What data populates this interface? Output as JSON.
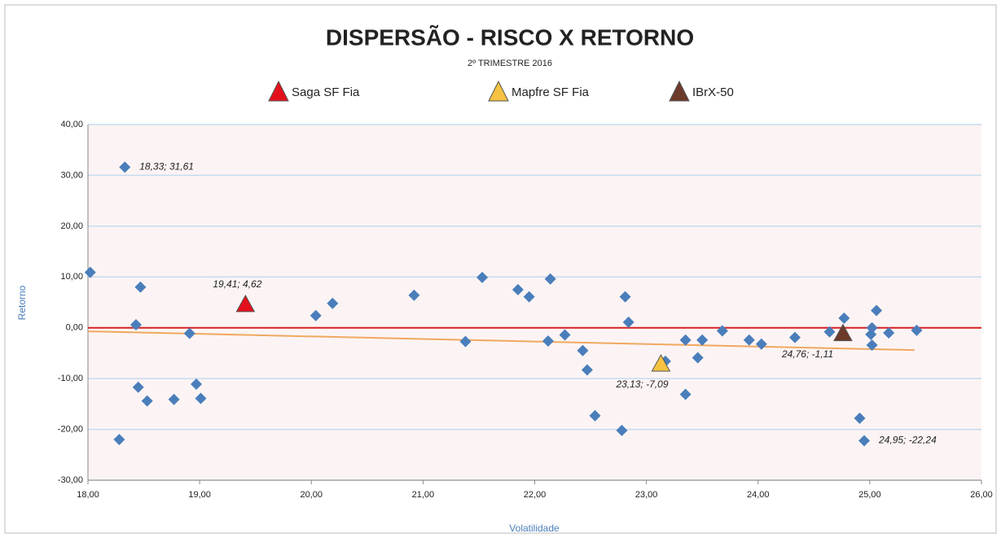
{
  "chart_data": {
    "type": "scatter",
    "title": "DISPERSÃO - RISCO X RETORNO",
    "subtitle": "2º TRIMESTRE 2016",
    "x_label": "Volatilidade",
    "y_label": "Retorno",
    "color": "#4a7ebb",
    "x": [
      18.33,
      18.02,
      18.47,
      18.43,
      18.45,
      18.28,
      18.53,
      18.77,
      18.91,
      18.97,
      19.01,
      20.04,
      20.19,
      20.92,
      21.38,
      21.53,
      21.85,
      21.95,
      22.14,
      22.12,
      22.27,
      22.43,
      22.47,
      22.54,
      22.78,
      22.81,
      22.84,
      23.17,
      23.35,
      23.35,
      23.46,
      23.5,
      23.68,
      23.92,
      24.03,
      24.33,
      24.64,
      24.77,
      25.01,
      25.02,
      25.02,
      25.06,
      25.17,
      25.42,
      24.91,
      24.95
    ],
    "values": [
      31.61,
      10.9,
      8.0,
      0.6,
      -11.7,
      -22.0,
      -14.4,
      -14.1,
      -1.1,
      -11.1,
      -13.9,
      2.4,
      4.8,
      6.4,
      -2.7,
      9.9,
      7.5,
      6.1,
      9.6,
      -2.6,
      -1.4,
      -4.5,
      -8.3,
      -17.3,
      -20.2,
      6.1,
      1.1,
      -6.6,
      -2.4,
      -13.1,
      -5.9,
      -2.4,
      -0.6,
      -2.4,
      -3.2,
      -1.9,
      -0.8,
      1.9,
      -1.3,
      -3.4,
      0.0,
      3.4,
      -1.0,
      -0.5,
      -17.8,
      -22.24
    ],
    "value_labels": [
      "18,33; 31,61",
      null,
      null,
      null,
      null,
      null,
      null,
      null,
      null,
      null,
      null,
      null,
      null,
      null,
      null,
      null,
      null,
      null,
      null,
      null,
      null,
      null,
      null,
      null,
      null,
      null,
      null,
      null,
      null,
      null,
      null,
      null,
      null,
      null,
      null,
      null,
      null,
      null,
      null,
      null,
      null,
      null,
      null,
      null,
      null,
      "24,95; -22,24"
    ],
    "series": [
      {
        "name": "Saga SF Fia",
        "color": "#e3101c",
        "x": [
          19.41
        ],
        "values": [
          4.62
        ],
        "value_labels": [
          "19,41; 4,62"
        ]
      },
      {
        "name": "Mapfre SF Fia",
        "color": "#f5c242",
        "x": [
          23.13
        ],
        "values": [
          -7.09
        ],
        "value_labels": [
          "23,13; -7,09"
        ]
      },
      {
        "name": "IBrX-50",
        "color": "#6b3a2a",
        "x": [
          24.76
        ],
        "values": [
          -1.11
        ],
        "value_labels": [
          "24,76; -1,11"
        ]
      }
    ],
    "trendline": {
      "color": "#f0a860",
      "x": [
        18.0,
        25.4
      ],
      "values": [
        -0.7,
        -4.4
      ]
    },
    "reference_line": {
      "value": 0,
      "color": "#d62020"
    },
    "xlim": [
      18,
      26
    ],
    "ylim": [
      -30,
      40
    ],
    "xticks": [
      {
        "value": 18,
        "label": "18,00"
      },
      {
        "value": 19,
        "label": "19,00"
      },
      {
        "value": 20,
        "label": "20,00"
      },
      {
        "value": 21,
        "label": "21,00"
      },
      {
        "value": 22,
        "label": "22,00"
      },
      {
        "value": 23,
        "label": "23,00"
      },
      {
        "value": 24,
        "label": "24,00"
      },
      {
        "value": 25,
        "label": "25,00"
      },
      {
        "value": 26,
        "label": "26,00"
      }
    ],
    "yticks": [
      {
        "value": -30,
        "label": "-30,00"
      },
      {
        "value": -20,
        "label": "-20,00"
      },
      {
        "value": -10,
        "label": "-10,00"
      },
      {
        "value": 0,
        "label": "0,00"
      },
      {
        "value": 10,
        "label": "10,00"
      },
      {
        "value": 20,
        "label": "20,00"
      },
      {
        "value": 30,
        "label": "30,00"
      },
      {
        "value": 40,
        "label": "40,00"
      }
    ],
    "grid": true
  }
}
